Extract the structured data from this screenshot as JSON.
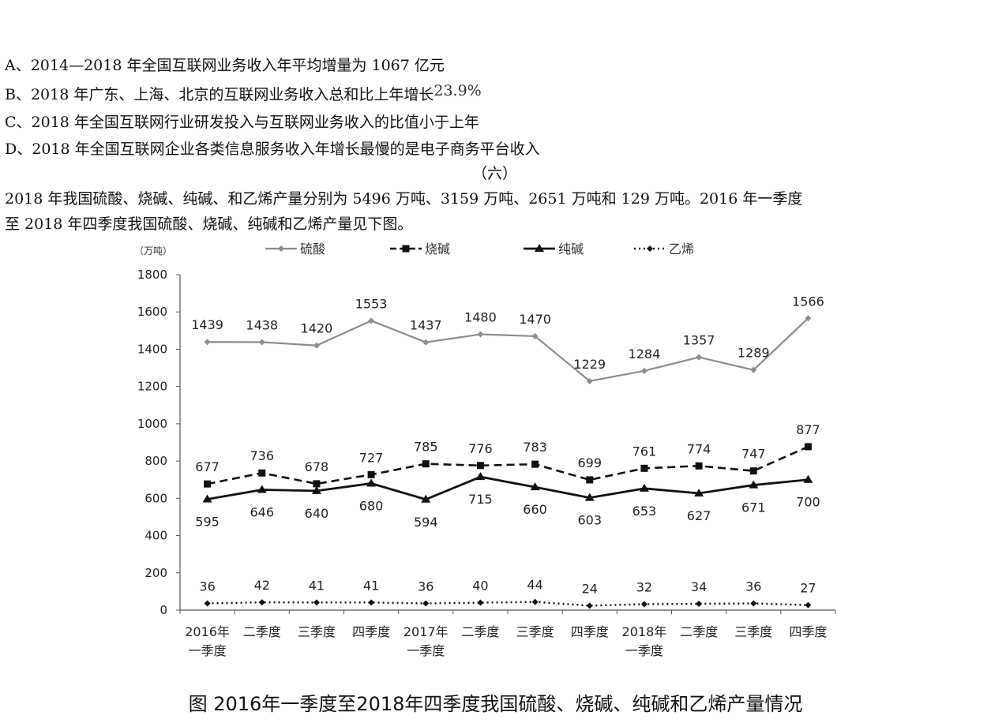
{
  "options": [
    {
      "text": "A、2014—2018 年全国互联网业务收入年平均增量为 1067 亿元",
      "suffix": ""
    },
    {
      "text": "B、2018 年广东、上海、北京的互联网业务收入总和比上年增长",
      "suffix": "23.9%"
    },
    {
      "text": "C、2018 年全国互联网行业研发投入与互联网业务收入的比值小于上年",
      "suffix": ""
    },
    {
      "text": "D、2018 年全国互联网企业各类信息服务收入年增长最慢的是电子商务平台收入",
      "suffix": ""
    }
  ],
  "section_marker": "（六）",
  "intro": [
    "2018 年我国硫酸、烧碱、纯碱、和乙烯产量分别为 5496 万吨、3159 万吨、2651 万吨和 129 万吨。2016 年一季度",
    "至 2018 年四季度我国硫酸、烧碱、纯碱和乙烯产量见下图。"
  ],
  "colors": {
    "sulfuric": "#8c8c8c",
    "caustic": "#111111",
    "soda": "#111111",
    "ethylene": "#111111",
    "axis": "#555555"
  },
  "chart_data": {
    "type": "line",
    "title": "图 2016年一季度至2018年四季度我国硫酸、烧碱、纯碱和乙烯产量情况",
    "ylabel": "（万吨）",
    "xlabel": "",
    "ylim": [
      0,
      1800
    ],
    "yticks": [
      0,
      200,
      400,
      600,
      800,
      1000,
      1200,
      1400,
      1600,
      1800
    ],
    "grid": false,
    "legend": "top",
    "categories": [
      [
        "2016年",
        "一季度"
      ],
      [
        "二季度"
      ],
      [
        "三季度"
      ],
      [
        "四季度"
      ],
      [
        "2017年",
        "一季度"
      ],
      [
        "二季度"
      ],
      [
        "三季度"
      ],
      [
        "四季度"
      ],
      [
        "2018年",
        "一季度"
      ],
      [
        "二季度"
      ],
      [
        "三季度"
      ],
      [
        "四季度"
      ]
    ],
    "series": [
      {
        "name": "硫酸",
        "style": "solid-gray-diamond",
        "label_pos": "above",
        "values": [
          1439,
          1438,
          1420,
          1553,
          1437,
          1480,
          1470,
          1229,
          1284,
          1357,
          1289,
          1566
        ]
      },
      {
        "name": "烧碱",
        "style": "dashed-square",
        "label_pos": "above",
        "values": [
          677,
          736,
          678,
          727,
          785,
          776,
          783,
          699,
          761,
          774,
          747,
          877
        ]
      },
      {
        "name": "纯碱",
        "style": "solid-triangle",
        "label_pos": "below",
        "values": [
          595,
          646,
          640,
          680,
          594,
          715,
          660,
          603,
          653,
          627,
          671,
          700
        ]
      },
      {
        "name": "乙烯",
        "style": "dotted-diamond",
        "label_pos": "above",
        "values": [
          36,
          42,
          41,
          41,
          36,
          40,
          44,
          24,
          32,
          34,
          36,
          27
        ]
      }
    ]
  }
}
